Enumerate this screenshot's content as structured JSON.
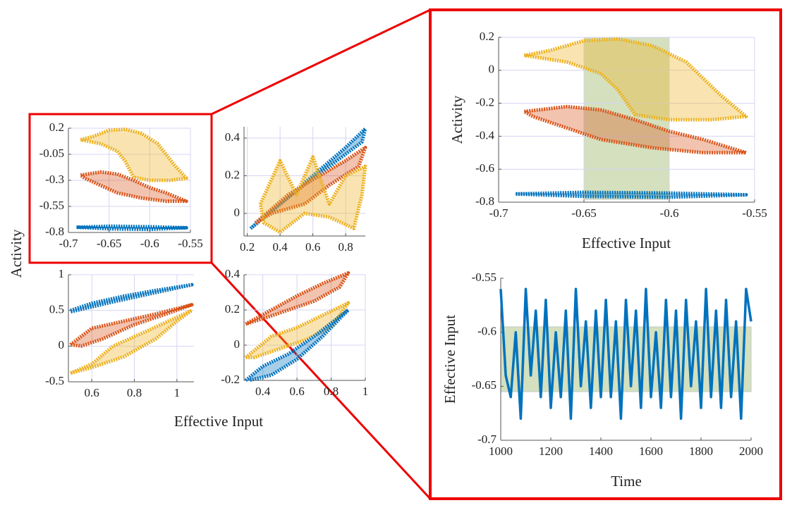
{
  "labels": {
    "y": "Activity",
    "x": "Effective Input"
  },
  "chart_data": [
    {
      "type": "loop",
      "xlim": [
        -0.7,
        -0.55
      ],
      "ylim": [
        -0.8,
        0.2
      ],
      "xticks": [
        -0.7,
        -0.65,
        -0.6,
        -0.55
      ],
      "yticks": [
        0.2,
        -0.05,
        -0.3,
        -0.55,
        -0.8
      ],
      "grid": true,
      "series": [
        {
          "color": "#edb120",
          "x": [
            -0.685,
            -0.67,
            -0.65,
            -0.63,
            -0.61,
            -0.59,
            -0.57,
            -0.555,
            -0.575,
            -0.6,
            -0.62,
            -0.63,
            -0.64,
            -0.66,
            -0.685
          ],
          "values": [
            0.09,
            0.12,
            0.18,
            0.19,
            0.15,
            0.05,
            -0.15,
            -0.28,
            -0.3,
            -0.3,
            -0.27,
            -0.12,
            -0.02,
            0.05,
            0.09
          ]
        },
        {
          "color": "#d95319",
          "x": [
            -0.685,
            -0.66,
            -0.64,
            -0.62,
            -0.6,
            -0.58,
            -0.555,
            -0.58,
            -0.61,
            -0.64,
            -0.66,
            -0.68,
            -0.685
          ],
          "values": [
            -0.25,
            -0.22,
            -0.24,
            -0.3,
            -0.37,
            -0.42,
            -0.5,
            -0.5,
            -0.47,
            -0.42,
            -0.35,
            -0.28,
            -0.25
          ]
        },
        {
          "color": "#0072bd",
          "x": [
            -0.69,
            -0.65,
            -0.6,
            -0.555,
            -0.6,
            -0.65,
            -0.69
          ],
          "values": [
            -0.75,
            -0.74,
            -0.745,
            -0.755,
            -0.77,
            -0.765,
            -0.75
          ]
        }
      ]
    },
    {
      "type": "loop",
      "xlim": [
        0.18,
        0.92
      ],
      "ylim": [
        -0.12,
        0.46
      ],
      "xticks": [
        0.2,
        0.4,
        0.6,
        0.8
      ],
      "yticks": [
        0,
        0.2,
        0.4
      ],
      "grid": true,
      "series": [
        {
          "color": "#0072bd",
          "x": [
            0.22,
            0.4,
            0.6,
            0.8,
            0.92,
            0.9,
            0.7,
            0.5,
            0.3,
            0.22
          ],
          "values": [
            -0.08,
            0.05,
            0.2,
            0.35,
            0.45,
            0.38,
            0.25,
            0.12,
            -0.02,
            -0.08
          ]
        },
        {
          "color": "#d95319",
          "x": [
            0.25,
            0.45,
            0.6,
            0.8,
            0.92,
            0.88,
            0.7,
            0.55,
            0.35,
            0.25
          ],
          "values": [
            -0.05,
            0.1,
            0.18,
            0.28,
            0.35,
            0.25,
            0.15,
            0.05,
            0.0,
            -0.05
          ]
        },
        {
          "color": "#edb120",
          "x": [
            0.28,
            0.4,
            0.5,
            0.6,
            0.7,
            0.8,
            0.92,
            0.9,
            0.85,
            0.7,
            0.55,
            0.4,
            0.3,
            0.28
          ],
          "values": [
            0.05,
            0.28,
            0.1,
            0.3,
            0.05,
            0.2,
            0.25,
            0.1,
            -0.08,
            -0.02,
            0.0,
            -0.1,
            -0.05,
            0.05
          ]
        }
      ]
    },
    {
      "type": "loop",
      "xlim": [
        0.49,
        1.08
      ],
      "ylim": [
        -0.5,
        1
      ],
      "xticks": [
        0.6,
        0.8,
        1
      ],
      "yticks": [
        -0.5,
        0,
        0.5,
        1
      ],
      "grid": true,
      "series": [
        {
          "color": "#0072bd",
          "x": [
            0.5,
            0.6,
            0.75,
            0.9,
            1.07,
            0.9,
            0.7,
            0.5
          ],
          "values": [
            0.5,
            0.6,
            0.7,
            0.78,
            0.86,
            0.75,
            0.62,
            0.48
          ]
        },
        {
          "color": "#d95319",
          "x": [
            0.5,
            0.6,
            0.75,
            0.9,
            1.07,
            0.95,
            0.8,
            0.65,
            0.55,
            0.5
          ],
          "values": [
            0.02,
            0.25,
            0.35,
            0.45,
            0.58,
            0.45,
            0.3,
            0.1,
            0.0,
            0.02
          ]
        },
        {
          "color": "#edb120",
          "x": [
            0.5,
            0.6,
            0.7,
            0.85,
            1.07,
            1.0,
            0.9,
            0.75,
            0.6,
            0.5
          ],
          "values": [
            -0.38,
            -0.25,
            0.0,
            0.2,
            0.5,
            0.35,
            0.1,
            -0.15,
            -0.3,
            -0.38
          ]
        }
      ]
    },
    {
      "type": "loop",
      "xlim": [
        0.29,
        1
      ],
      "ylim": [
        -0.2,
        0.4
      ],
      "xticks": [
        0.4,
        0.6,
        0.8,
        1
      ],
      "yticks": [
        -0.2,
        0,
        0.2,
        0.4
      ],
      "grid": true,
      "series": [
        {
          "color": "#d95319",
          "x": [
            0.3,
            0.45,
            0.6,
            0.75,
            0.9,
            0.85,
            0.7,
            0.55,
            0.4,
            0.3
          ],
          "values": [
            0.12,
            0.2,
            0.28,
            0.35,
            0.41,
            0.33,
            0.25,
            0.2,
            0.15,
            0.12
          ]
        },
        {
          "color": "#edb120",
          "x": [
            0.3,
            0.45,
            0.6,
            0.75,
            0.9,
            0.8,
            0.65,
            0.5,
            0.35,
            0.3
          ],
          "values": [
            -0.07,
            0.05,
            0.1,
            0.17,
            0.24,
            0.1,
            0.03,
            -0.02,
            -0.07,
            -0.07
          ]
        },
        {
          "color": "#0072bd",
          "x": [
            0.3,
            0.4,
            0.55,
            0.7,
            0.9,
            0.75,
            0.6,
            0.45,
            0.32
          ],
          "values": [
            -0.2,
            -0.12,
            -0.05,
            0.05,
            0.2,
            0.05,
            -0.08,
            -0.17,
            -0.2
          ]
        }
      ]
    },
    {
      "type": "loop",
      "x_label": "Effective Input",
      "y_label": "Activity",
      "xlim": [
        -0.7,
        -0.55
      ],
      "ylim": [
        -0.8,
        0.2
      ],
      "xticks": [
        -0.7,
        -0.65,
        -0.6,
        -0.55
      ],
      "yticks": [
        0.2,
        0,
        -0.2,
        -0.4,
        -0.6,
        -0.8
      ],
      "grid": true,
      "xband": [
        -0.65,
        -0.6
      ],
      "band_color": "#b8cc94",
      "series": [
        {
          "color": "#edb120",
          "x": [
            -0.685,
            -0.67,
            -0.65,
            -0.63,
            -0.61,
            -0.59,
            -0.57,
            -0.555,
            -0.575,
            -0.6,
            -0.62,
            -0.63,
            -0.64,
            -0.66,
            -0.685
          ],
          "values": [
            0.09,
            0.12,
            0.18,
            0.19,
            0.15,
            0.05,
            -0.15,
            -0.28,
            -0.3,
            -0.3,
            -0.27,
            -0.12,
            -0.02,
            0.05,
            0.09
          ]
        },
        {
          "color": "#d95319",
          "x": [
            -0.685,
            -0.66,
            -0.64,
            -0.62,
            -0.6,
            -0.58,
            -0.555,
            -0.58,
            -0.61,
            -0.64,
            -0.66,
            -0.68,
            -0.685
          ],
          "values": [
            -0.25,
            -0.22,
            -0.24,
            -0.3,
            -0.37,
            -0.42,
            -0.5,
            -0.5,
            -0.47,
            -0.42,
            -0.35,
            -0.28,
            -0.25
          ]
        },
        {
          "color": "#0072bd",
          "x": [
            -0.69,
            -0.65,
            -0.6,
            -0.555,
            -0.6,
            -0.65,
            -0.69
          ],
          "values": [
            -0.75,
            -0.74,
            -0.745,
            -0.755,
            -0.77,
            -0.765,
            -0.75
          ]
        }
      ]
    },
    {
      "type": "line",
      "x_label": "Time",
      "y_label": "Effective Input",
      "xlim": [
        1000,
        2000
      ],
      "ylim": [
        -0.7,
        -0.55
      ],
      "xticks": [
        1000,
        1200,
        1400,
        1600,
        1800,
        2000
      ],
      "yticks": [
        -0.55,
        -0.6,
        -0.65,
        -0.7
      ],
      "grid": false,
      "yband": [
        -0.655,
        -0.595
      ],
      "band_color": "#b8cc94",
      "series": [
        {
          "color": "#0072bd",
          "x": [
            1000,
            1020,
            1040,
            1060,
            1080,
            1100,
            1120,
            1140,
            1160,
            1180,
            1200,
            1220,
            1240,
            1260,
            1280,
            1300,
            1320,
            1340,
            1360,
            1380,
            1400,
            1420,
            1440,
            1460,
            1480,
            1500,
            1520,
            1540,
            1560,
            1580,
            1600,
            1620,
            1640,
            1660,
            1680,
            1700,
            1720,
            1740,
            1760,
            1780,
            1800,
            1820,
            1840,
            1860,
            1880,
            1900,
            1920,
            1940,
            1960,
            1980,
            2000
          ],
          "values": [
            -0.56,
            -0.64,
            -0.66,
            -0.6,
            -0.68,
            -0.56,
            -0.64,
            -0.58,
            -0.66,
            -0.57,
            -0.67,
            -0.6,
            -0.66,
            -0.58,
            -0.68,
            -0.56,
            -0.65,
            -0.59,
            -0.67,
            -0.58,
            -0.66,
            -0.57,
            -0.66,
            -0.59,
            -0.68,
            -0.57,
            -0.65,
            -0.58,
            -0.67,
            -0.56,
            -0.66,
            -0.6,
            -0.67,
            -0.57,
            -0.66,
            -0.58,
            -0.68,
            -0.57,
            -0.65,
            -0.59,
            -0.67,
            -0.56,
            -0.66,
            -0.58,
            -0.67,
            -0.57,
            -0.66,
            -0.59,
            -0.68,
            -0.56,
            -0.59
          ]
        }
      ]
    }
  ]
}
